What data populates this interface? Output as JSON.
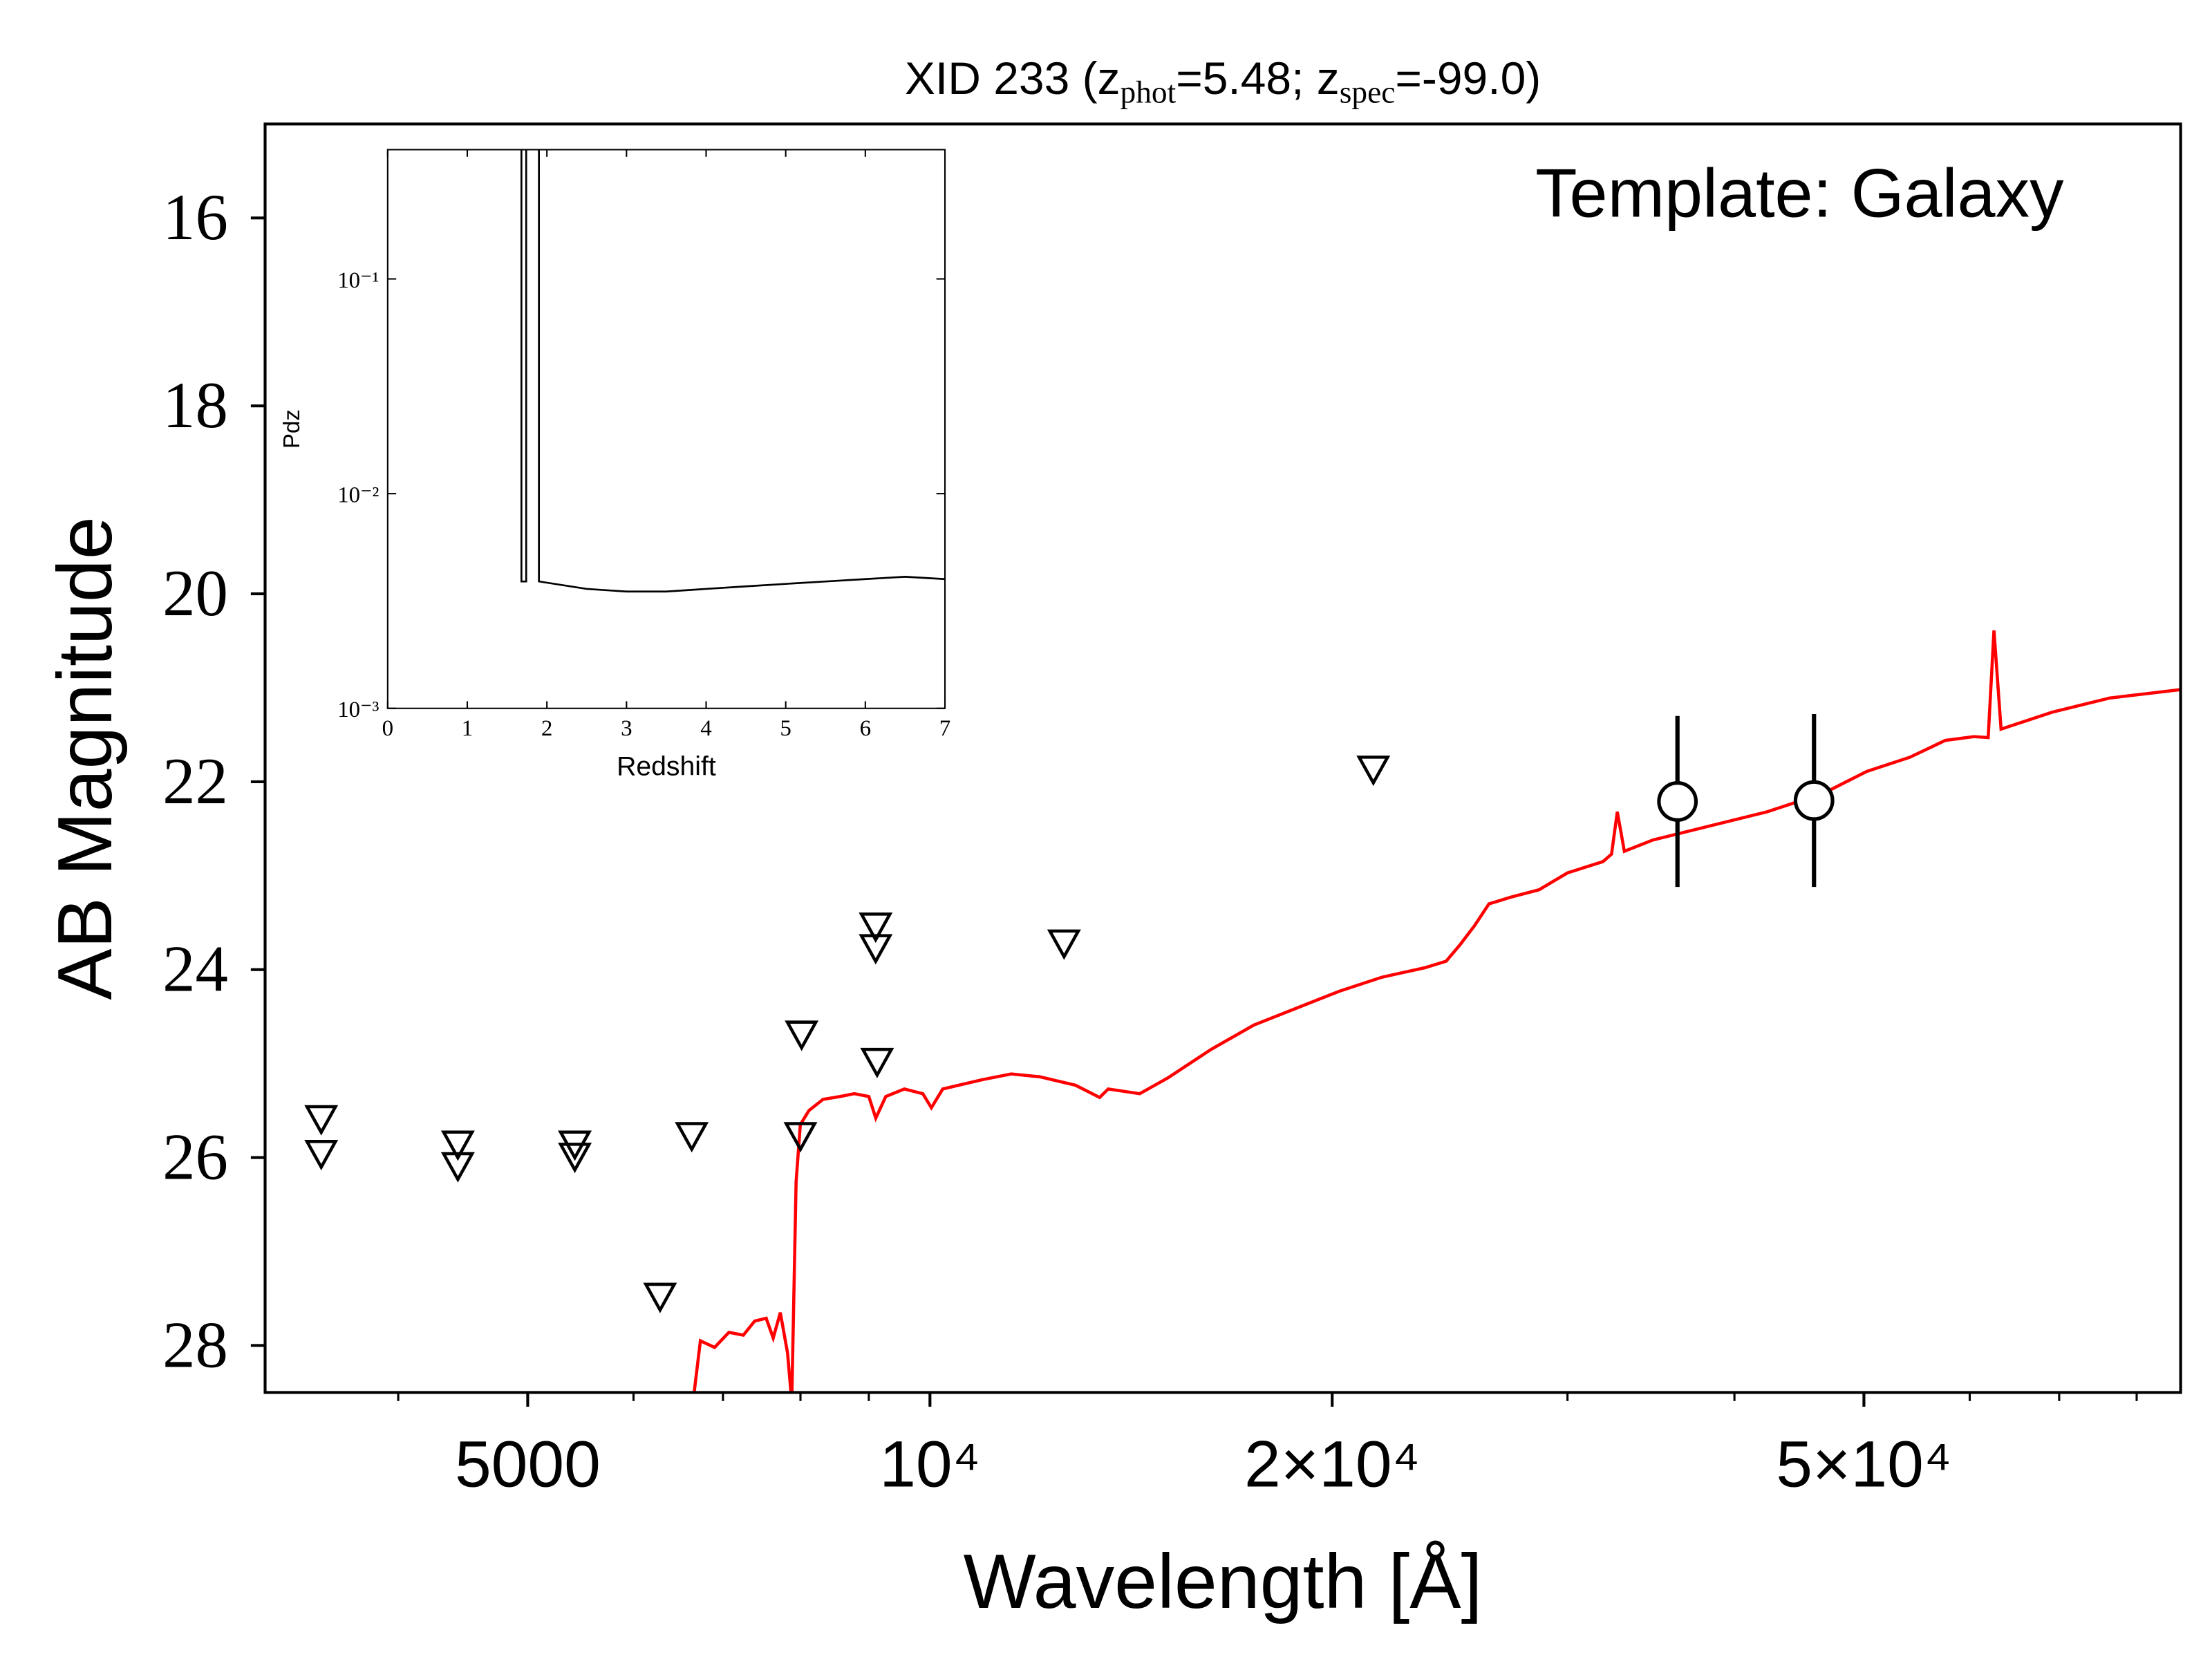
{
  "chart_data": [
    {
      "type": "line",
      "title_parts": [
        {
          "text": "XID 233 (z"
        },
        {
          "text": "phot",
          "sub": true
        },
        {
          "text": "=5.48; z"
        },
        {
          "text": "spec",
          "sub": true
        },
        {
          "text": "=-99.0)"
        }
      ],
      "annotation": "Template: Galaxy",
      "xlabel": "Wavelength [Å]",
      "ylabel": "AB Magnitude",
      "xscale": "log",
      "xlim": [
        3180,
        86300
      ],
      "ylim": [
        28.5,
        15
      ],
      "xticks": [
        5000,
        {
          "value": 10000,
          "label": "10⁴"
        },
        {
          "value": 20000,
          "label": "2×10⁴"
        },
        {
          "value": 50000,
          "label": "5×10⁴"
        }
      ],
      "xminorticks": [
        4000,
        6000,
        7000,
        8000,
        9000,
        30000,
        40000,
        60000,
        70000,
        80000
      ],
      "yticks": [
        16,
        18,
        20,
        22,
        24,
        26,
        28
      ],
      "series": [
        {
          "kind": "line",
          "color": "#ff0000",
          "x": [
            6648,
            6733,
            6900,
            7072,
            7250,
            7393,
            7541,
            7633,
            7727,
            7824,
            7881,
            7940,
            7998,
            8117,
            8318,
            8567,
            8778,
            9000,
            9109,
            9267,
            9568,
            9878,
            10025,
            10223,
            10952,
            11503,
            12083,
            12850,
            13397,
            13596,
            14354,
            15076,
            16228,
            17474,
            18805,
            20246,
            21795,
            23461,
            24340,
            24945,
            25566,
            26203,
            27188,
            28562,
            30003,
            31893,
            32367,
            32689,
            33090,
            34762,
            38348,
            42315,
            46690,
            50250,
            54110,
            57530,
            60440,
            61940,
            62560,
            63330,
            69160,
            76320,
            86300
          ],
          "values": [
            28.6,
            27.95,
            28.02,
            27.86,
            27.89,
            27.74,
            27.71,
            27.92,
            27.65,
            28.08,
            28.6,
            26.26,
            25.65,
            25.5,
            25.38,
            25.35,
            25.32,
            25.35,
            25.58,
            25.35,
            25.27,
            25.32,
            25.47,
            25.27,
            25.17,
            25.11,
            25.14,
            25.23,
            25.36,
            25.27,
            25.32,
            25.15,
            24.85,
            24.59,
            24.41,
            24.23,
            24.08,
            23.98,
            23.91,
            23.73,
            23.53,
            23.3,
            23.23,
            23.15,
            22.97,
            22.85,
            22.77,
            22.32,
            22.74,
            22.62,
            22.47,
            22.32,
            22.12,
            21.89,
            21.74,
            21.56,
            21.52,
            21.53,
            20.39,
            21.44,
            21.26,
            21.11,
            21.02
          ]
        },
        {
          "kind": "upper-limit",
          "color": "#000000",
          "x": [
            3503,
            3503,
            4433,
            4433,
            5423,
            5423,
            6281,
            6633,
            8016,
            8000,
            9107,
            9107,
            9130,
            12600,
            21470
          ],
          "values": [
            25.58,
            25.95,
            25.85,
            26.08,
            25.85,
            25.98,
            27.47,
            25.76,
            24.68,
            25.76,
            23.53,
            23.76,
            24.97,
            23.71,
            21.86
          ]
        },
        {
          "kind": "errorbar",
          "color": "#000000",
          "x": [
            36260,
            45880
          ],
          "values": [
            22.21,
            22.2
          ],
          "errors": [
            0.91,
            0.92
          ]
        }
      ]
    },
    {
      "type": "line",
      "xlabel": "Redshift",
      "ylabel": "Pdz",
      "yscale": "log",
      "xlim": [
        0,
        7
      ],
      "ylim": [
        0.001,
        0.4
      ],
      "xticks": [
        0,
        1,
        2,
        3,
        4,
        5,
        6,
        7
      ],
      "yticks": [
        {
          "value": 0.001,
          "label": "10⁻³"
        },
        {
          "value": 0.01,
          "label": "10⁻²"
        },
        {
          "value": 0.1,
          "label": "10⁻¹"
        }
      ],
      "series": [
        {
          "kind": "line",
          "color": "#000000",
          "x": [
            0,
            1.68,
            1.68,
            1.74,
            1.74,
            1.9,
            1.9,
            2.5,
            3,
            3.5,
            4,
            4.5,
            5,
            5.5,
            6,
            6.5,
            7
          ],
          "values": [
            0,
            0,
            0.0039,
            0.0039,
            0,
            0,
            0.0039,
            0.0036,
            0.0035,
            0.0035,
            0.0036,
            0.0037,
            0.0038,
            0.0039,
            0.004,
            0.0041,
            0.004
          ]
        }
      ]
    }
  ]
}
